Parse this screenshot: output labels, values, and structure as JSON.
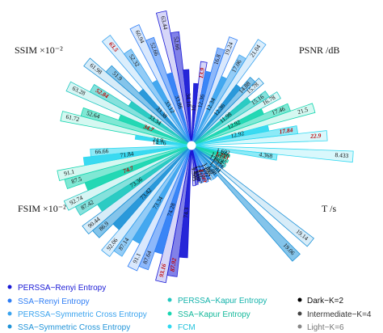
{
  "chart_data": {
    "type": "radial-bar",
    "legend": [
      "PERSSA−Renyi Entropy",
      "SSA−Renyi Entropy",
      "PERSSA−Symmetric Cross Entropy",
      "SSA−Symmetric Cross Entropy",
      "PERSSA−Kapur Entropy",
      "SSA−Kapur Entropy",
      "FCM"
    ],
    "shade_legend": [
      "Dark−K=2",
      "Intermediate−K=4",
      "Light−K=6"
    ],
    "method_colors": [
      "#1a1ad6",
      "#2f7ef5",
      "#3aa3ee",
      "#1f93d8",
      "#21c8c0",
      "#18d6b0",
      "#2fd8f0"
    ],
    "panels": [
      {
        "label": "SSIM ×10⁻²",
        "bars": [
          {
            "value": 34.18,
            "level": 0,
            "method": 0
          },
          {
            "value": 52.66,
            "level": 1,
            "method": 0
          },
          {
            "value": 63.44,
            "level": 2,
            "method": 0
          },
          {
            "value": 33.86,
            "level": 0,
            "method": 1
          },
          {
            "value": 52.66,
            "level": 1,
            "method": 1
          },
          {
            "value": 60.94,
            "level": 2,
            "method": 1
          },
          {
            "value": 33.12,
            "level": 0,
            "method": 2
          },
          {
            "value": 52.32,
            "level": 1,
            "method": 2
          },
          {
            "value": 63.5,
            "level": 2,
            "method": 2,
            "highlight": true
          },
          {
            "value": 33.38,
            "level": 0,
            "method": 3
          },
          {
            "value": 51.9,
            "level": 1,
            "method": 3
          },
          {
            "value": 61.98,
            "level": 2,
            "method": 3
          },
          {
            "value": 33.34,
            "level": 0,
            "method": 4
          },
          {
            "value": 52.84,
            "level": 1,
            "method": 4,
            "highlight": true
          },
          {
            "value": 63.28,
            "level": 2,
            "method": 4
          },
          {
            "value": 34.7,
            "level": 0,
            "method": 5,
            "highlight": true
          },
          {
            "value": 52.64,
            "level": 1,
            "method": 5
          },
          {
            "value": 61.72,
            "level": 2,
            "method": 5
          },
          {
            "value": 24.9,
            "level": 0,
            "method": 6
          },
          {
            "value": 14.76,
            "level": 0,
            "method": 6
          }
        ]
      },
      {
        "label": "PSNR /dB",
        "bars": [
          {
            "value": 10,
            "level": 0,
            "method": 0
          },
          {
            "value": 13.9,
            "level": 2,
            "method": 0,
            "highlight": true
          },
          {
            "value": 12.36,
            "level": 0,
            "method": 1
          },
          {
            "value": 16.8,
            "level": 1,
            "method": 1
          },
          {
            "value": 19.24,
            "level": 2,
            "method": 1
          },
          {
            "value": 12.34,
            "level": 0,
            "method": 2
          },
          {
            "value": 17.06,
            "level": 1,
            "method": 2
          },
          {
            "value": 21.04,
            "level": 2,
            "method": 2
          },
          {
            "value": 12.36,
            "level": 0,
            "method": 3
          },
          {
            "value": 14.88,
            "level": 1,
            "method": 3
          },
          {
            "value": 15.78,
            "level": 2,
            "method": 3
          },
          {
            "value": 11.98,
            "level": 0,
            "method": 4
          },
          {
            "value": 15.16,
            "level": 1,
            "method": 4
          },
          {
            "value": 16.78,
            "level": 2,
            "method": 4
          },
          {
            "value": 12.92,
            "level": 0,
            "method": 5
          },
          {
            "value": 17.46,
            "level": 1,
            "method": 5
          },
          {
            "value": 21.5,
            "level": 2,
            "method": 5
          },
          {
            "value": 12.92,
            "level": 0,
            "method": 6
          },
          {
            "value": 17.84,
            "level": 1,
            "method": 6,
            "highlight": true
          },
          {
            "value": 22.9,
            "level": 2,
            "method": 6,
            "highlight": true
          }
        ]
      },
      {
        "label": "T /s",
        "bars": [
          {
            "value": 8.433,
            "level": 2,
            "method": 6
          },
          {
            "value": 4.368,
            "level": 1,
            "method": 6
          },
          {
            "value": 1.692,
            "level": 0,
            "method": 6
          },
          {
            "value": 1.866,
            "level": 0,
            "method": 5
          },
          {
            "value": 1.733,
            "level": 0,
            "method": 5,
            "highlight": true
          },
          {
            "value": 1.877,
            "level": 1,
            "method": 5
          },
          {
            "value": 1.745,
            "level": 0,
            "method": 4
          },
          {
            "value": 1.864,
            "level": 1,
            "method": 4
          },
          {
            "value": 1.776,
            "level": 0,
            "method": 3
          },
          {
            "value": 19.14,
            "level": 2,
            "method": 3
          },
          {
            "value": 1.781,
            "level": 0,
            "method": 3
          },
          {
            "value": 19.06,
            "level": 1,
            "method": 3
          },
          {
            "value": 1.88,
            "level": 0,
            "method": 2
          },
          {
            "value": 1.897,
            "level": 1,
            "method": 2
          },
          {
            "value": 1.885,
            "level": 2,
            "method": 2
          },
          {
            "value": 1.772,
            "level": 0,
            "method": 1
          },
          {
            "value": 1.871,
            "level": 1,
            "method": 1
          },
          {
            "value": 1.749,
            "level": 0,
            "method": 1,
            "highlight": true
          },
          {
            "value": 1.811,
            "level": 1,
            "method": 1
          },
          {
            "value": 1.697,
            "level": 0,
            "method": 0
          },
          {
            "value": 1.852,
            "level": 1,
            "method": 0
          },
          {
            "value": 1.905,
            "level": 2,
            "method": 0
          }
        ]
      },
      {
        "label": "FSIM ×10⁻²",
        "bars": [
          {
            "value": 74.3,
            "level": 0,
            "method": 0
          },
          {
            "value": 87.92,
            "level": 1,
            "method": 0,
            "highlight": true
          },
          {
            "value": 93.16,
            "level": 2,
            "method": 0,
            "highlight": true
          },
          {
            "value": 74.28,
            "level": 0,
            "method": 1
          },
          {
            "value": 87.64,
            "level": 1,
            "method": 1
          },
          {
            "value": 91.1,
            "level": 2,
            "method": 1
          },
          {
            "value": 73.34,
            "level": 0,
            "method": 2
          },
          {
            "value": 87.14,
            "level": 1,
            "method": 2
          },
          {
            "value": 92.06,
            "level": 2,
            "method": 2
          },
          {
            "value": 73.42,
            "level": 0,
            "method": 3
          },
          {
            "value": 86.9,
            "level": 1,
            "method": 3
          },
          {
            "value": 90.44,
            "level": 2,
            "method": 3
          },
          {
            "value": 73.36,
            "level": 0,
            "method": 4
          },
          {
            "value": 87.42,
            "level": 1,
            "method": 4
          },
          {
            "value": 92.74,
            "level": 2,
            "method": 4
          },
          {
            "value": 74.7,
            "level": 0,
            "method": 5,
            "highlight": true
          },
          {
            "value": 87.5,
            "level": 1,
            "method": 5
          },
          {
            "value": 91.1,
            "level": 2,
            "method": 5
          },
          {
            "value": 71.84,
            "level": 0,
            "method": 6
          },
          {
            "value": 66.66,
            "level": 1,
            "method": 6
          }
        ]
      }
    ]
  }
}
